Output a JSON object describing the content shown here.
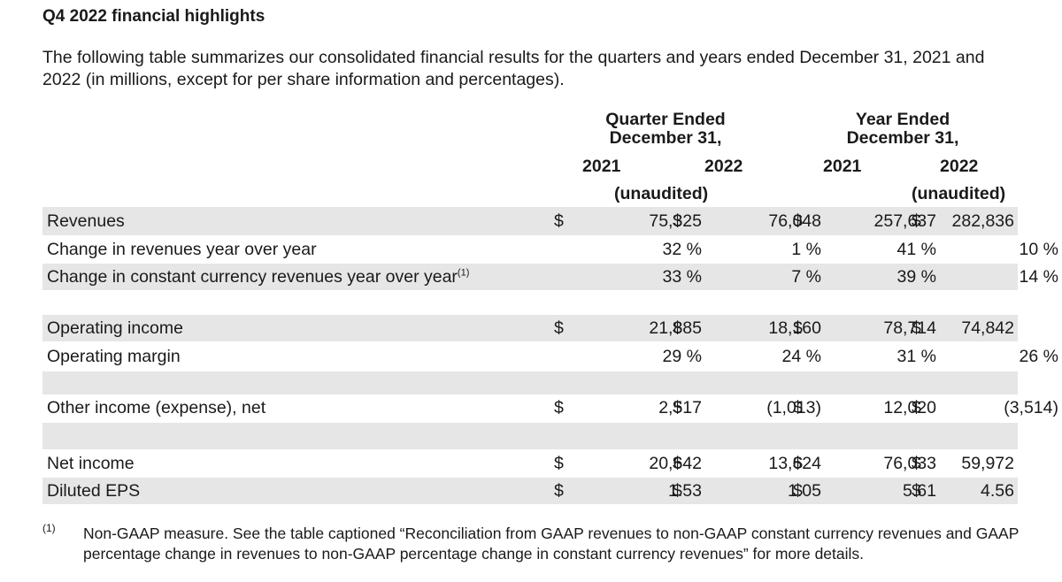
{
  "title": "Q4 2022 financial highlights",
  "intro": "The following table summarizes our consolidated financial results for the quarters and years ended December 31, 2021 and 2022 (in millions, except for per share information and percentages).",
  "headers": {
    "quarter_line1": "Quarter Ended",
    "quarter_line2": "December 31,",
    "year_line1": "Year Ended",
    "year_line2": "December 31,",
    "q_2021": "2021",
    "q_2022": "2022",
    "y_2021": "2021",
    "y_2022": "2022",
    "q_unaudited": "(unaudited)",
    "y_unaudited": "(unaudited)"
  },
  "rows": [
    {
      "label": "Revenues",
      "sup": "",
      "s1": "$",
      "q2021": "75,325",
      "s2": "$",
      "q2022": "76,048",
      "s3": "$",
      "y2021": "257,637",
      "s4": "$",
      "y2022": "282,836"
    },
    {
      "label": "Change in revenues year over year",
      "sup": "",
      "s1": "",
      "q2021": "32 %",
      "s2": "",
      "q2022": "1 %",
      "s3": "",
      "y2021": "41 %",
      "s4": "",
      "y2022": "10 %"
    },
    {
      "label": "Change in constant currency revenues year over year",
      "sup": "(1)",
      "s1": "",
      "q2021": "33 %",
      "s2": "",
      "q2022": "7 %",
      "s3": "",
      "y2021": "39 %",
      "s4": "",
      "y2022": "14 %"
    },
    {
      "label": "Operating income",
      "sup": "",
      "s1": "$",
      "q2021": "21,885",
      "s2": "$",
      "q2022": "18,160",
      "s3": "$",
      "y2021": "78,714",
      "s4": "$",
      "y2022": "74,842"
    },
    {
      "label": "Operating margin",
      "sup": "",
      "s1": "",
      "q2021": "29 %",
      "s2": "",
      "q2022": "24 %",
      "s3": "",
      "y2021": "31 %",
      "s4": "",
      "y2022": "26 %"
    },
    {
      "label": "Other income (expense), net",
      "sup": "",
      "s1": "$",
      "q2021": "2,517",
      "s2": "$",
      "q2022": "(1,013)",
      "s3": "$",
      "y2021": "12,020",
      "s4": "$",
      "y2022": "(3,514)"
    },
    {
      "label": "Net income",
      "sup": "",
      "s1": "$",
      "q2021": "20,642",
      "s2": "$",
      "q2022": "13,624",
      "s3": "$",
      "y2021": "76,033",
      "s4": "$",
      "y2022": "59,972"
    },
    {
      "label": "Diluted EPS",
      "sup": "",
      "s1": "$",
      "q2021": "1.53",
      "s2": "$",
      "q2022": "1.05",
      "s3": "$",
      "y2021": "5.61",
      "s4": "$",
      "y2022": "4.56"
    }
  ],
  "footnote": {
    "mark": "(1)",
    "text": "Non-GAAP measure. See the table captioned “Reconciliation from GAAP revenues to non-GAAP constant currency revenues and GAAP percentage change in revenues to non-GAAP percentage change in constant currency revenues” for more details."
  }
}
